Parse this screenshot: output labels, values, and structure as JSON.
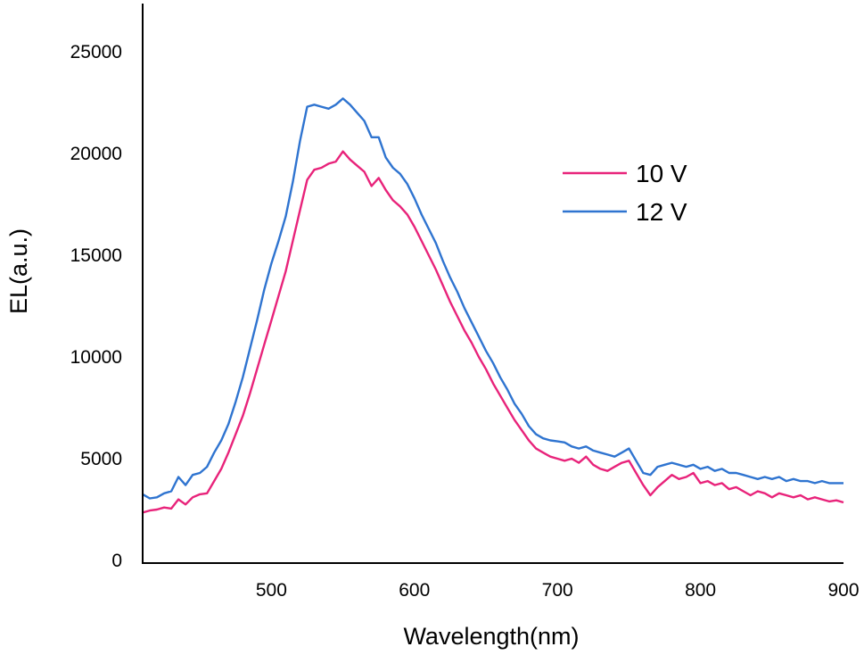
{
  "chart_data": {
    "type": "line",
    "title": "",
    "xlabel": "Wavelength(nm)",
    "ylabel": "EL(a.u.)",
    "xlim": [
      410,
      900
    ],
    "ylim": [
      0,
      27000
    ],
    "x_ticks": [
      500,
      600,
      700,
      800,
      900
    ],
    "y_ticks": [
      0,
      5000,
      10000,
      15000,
      20000,
      25000
    ],
    "grid": false,
    "legend_position": "right",
    "series": [
      {
        "name": "10 V",
        "color": "#e8237a",
        "points": [
          [
            410,
            2350
          ],
          [
            415,
            2450
          ],
          [
            420,
            2500
          ],
          [
            425,
            2600
          ],
          [
            430,
            2550
          ],
          [
            435,
            3000
          ],
          [
            440,
            2750
          ],
          [
            445,
            3100
          ],
          [
            450,
            3250
          ],
          [
            455,
            3300
          ],
          [
            460,
            3900
          ],
          [
            465,
            4500
          ],
          [
            470,
            5300
          ],
          [
            475,
            6200
          ],
          [
            480,
            7100
          ],
          [
            485,
            8200
          ],
          [
            490,
            9400
          ],
          [
            495,
            10600
          ],
          [
            500,
            11800
          ],
          [
            505,
            13000
          ],
          [
            510,
            14200
          ],
          [
            515,
            15700
          ],
          [
            520,
            17200
          ],
          [
            525,
            18700
          ],
          [
            530,
            19200
          ],
          [
            535,
            19300
          ],
          [
            540,
            19500
          ],
          [
            545,
            19600
          ],
          [
            550,
            20100
          ],
          [
            555,
            19700
          ],
          [
            560,
            19400
          ],
          [
            565,
            19100
          ],
          [
            570,
            18400
          ],
          [
            575,
            18800
          ],
          [
            580,
            18200
          ],
          [
            585,
            17700
          ],
          [
            590,
            17400
          ],
          [
            595,
            17000
          ],
          [
            600,
            16400
          ],
          [
            605,
            15700
          ],
          [
            610,
            15000
          ],
          [
            615,
            14300
          ],
          [
            620,
            13500
          ],
          [
            625,
            12700
          ],
          [
            630,
            12000
          ],
          [
            635,
            11300
          ],
          [
            640,
            10700
          ],
          [
            645,
            10000
          ],
          [
            650,
            9400
          ],
          [
            655,
            8700
          ],
          [
            660,
            8100
          ],
          [
            665,
            7500
          ],
          [
            670,
            6900
          ],
          [
            675,
            6400
          ],
          [
            680,
            5900
          ],
          [
            685,
            5500
          ],
          [
            690,
            5300
          ],
          [
            695,
            5100
          ],
          [
            700,
            5000
          ],
          [
            705,
            4900
          ],
          [
            710,
            5000
          ],
          [
            715,
            4800
          ],
          [
            720,
            5100
          ],
          [
            725,
            4700
          ],
          [
            730,
            4500
          ],
          [
            735,
            4400
          ],
          [
            740,
            4600
          ],
          [
            745,
            4800
          ],
          [
            750,
            4900
          ],
          [
            755,
            4300
          ],
          [
            760,
            3700
          ],
          [
            765,
            3200
          ],
          [
            770,
            3600
          ],
          [
            775,
            3900
          ],
          [
            780,
            4200
          ],
          [
            785,
            4000
          ],
          [
            790,
            4100
          ],
          [
            795,
            4300
          ],
          [
            800,
            3800
          ],
          [
            805,
            3900
          ],
          [
            810,
            3700
          ],
          [
            815,
            3800
          ],
          [
            820,
            3500
          ],
          [
            825,
            3600
          ],
          [
            830,
            3400
          ],
          [
            835,
            3200
          ],
          [
            840,
            3400
          ],
          [
            845,
            3300
          ],
          [
            850,
            3100
          ],
          [
            855,
            3300
          ],
          [
            860,
            3200
          ],
          [
            865,
            3100
          ],
          [
            870,
            3200
          ],
          [
            875,
            3000
          ],
          [
            880,
            3100
          ],
          [
            885,
            3000
          ],
          [
            890,
            2900
          ],
          [
            895,
            2950
          ],
          [
            900,
            2850
          ]
        ]
      },
      {
        "name": "12 V",
        "color": "#2f74d0",
        "points": [
          [
            410,
            3250
          ],
          [
            415,
            3050
          ],
          [
            420,
            3100
          ],
          [
            425,
            3300
          ],
          [
            430,
            3400
          ],
          [
            435,
            4100
          ],
          [
            440,
            3700
          ],
          [
            445,
            4200
          ],
          [
            450,
            4300
          ],
          [
            455,
            4600
          ],
          [
            460,
            5300
          ],
          [
            465,
            5900
          ],
          [
            470,
            6700
          ],
          [
            475,
            7800
          ],
          [
            480,
            9000
          ],
          [
            485,
            10400
          ],
          [
            490,
            11800
          ],
          [
            495,
            13300
          ],
          [
            500,
            14600
          ],
          [
            505,
            15700
          ],
          [
            510,
            16900
          ],
          [
            515,
            18600
          ],
          [
            520,
            20600
          ],
          [
            525,
            22300
          ],
          [
            530,
            22400
          ],
          [
            535,
            22300
          ],
          [
            540,
            22200
          ],
          [
            545,
            22400
          ],
          [
            550,
            22700
          ],
          [
            555,
            22400
          ],
          [
            560,
            22000
          ],
          [
            565,
            21600
          ],
          [
            570,
            20800
          ],
          [
            575,
            20800
          ],
          [
            580,
            19800
          ],
          [
            585,
            19300
          ],
          [
            590,
            19000
          ],
          [
            595,
            18500
          ],
          [
            600,
            17800
          ],
          [
            605,
            17000
          ],
          [
            610,
            16300
          ],
          [
            615,
            15600
          ],
          [
            620,
            14700
          ],
          [
            625,
            13900
          ],
          [
            630,
            13200
          ],
          [
            635,
            12400
          ],
          [
            640,
            11700
          ],
          [
            645,
            11000
          ],
          [
            650,
            10300
          ],
          [
            655,
            9700
          ],
          [
            660,
            9000
          ],
          [
            665,
            8400
          ],
          [
            670,
            7700
          ],
          [
            675,
            7200
          ],
          [
            680,
            6600
          ],
          [
            685,
            6200
          ],
          [
            690,
            6000
          ],
          [
            695,
            5900
          ],
          [
            700,
            5850
          ],
          [
            705,
            5800
          ],
          [
            710,
            5600
          ],
          [
            715,
            5500
          ],
          [
            720,
            5600
          ],
          [
            725,
            5400
          ],
          [
            730,
            5300
          ],
          [
            735,
            5200
          ],
          [
            740,
            5100
          ],
          [
            745,
            5300
          ],
          [
            750,
            5500
          ],
          [
            755,
            4900
          ],
          [
            760,
            4300
          ],
          [
            765,
            4200
          ],
          [
            770,
            4600
          ],
          [
            775,
            4700
          ],
          [
            780,
            4800
          ],
          [
            785,
            4700
          ],
          [
            790,
            4600
          ],
          [
            795,
            4700
          ],
          [
            800,
            4500
          ],
          [
            805,
            4600
          ],
          [
            810,
            4400
          ],
          [
            815,
            4500
          ],
          [
            820,
            4300
          ],
          [
            825,
            4300
          ],
          [
            830,
            4200
          ],
          [
            835,
            4100
          ],
          [
            840,
            4000
          ],
          [
            845,
            4100
          ],
          [
            850,
            4000
          ],
          [
            855,
            4100
          ],
          [
            860,
            3900
          ],
          [
            865,
            4000
          ],
          [
            870,
            3900
          ],
          [
            875,
            3900
          ],
          [
            880,
            3800
          ],
          [
            885,
            3900
          ],
          [
            890,
            3800
          ],
          [
            895,
            3800
          ],
          [
            900,
            3800
          ]
        ]
      }
    ]
  }
}
